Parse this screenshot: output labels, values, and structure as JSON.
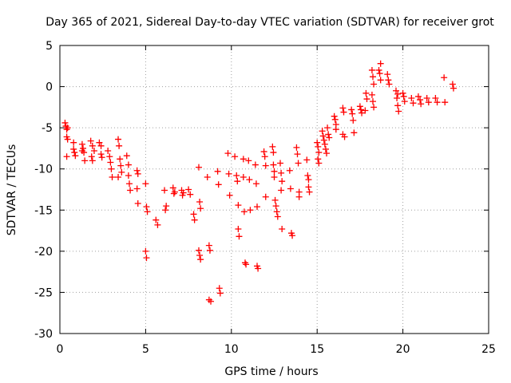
{
  "chart_data": {
    "type": "scatter",
    "title": "Day 365 of 2021, Sidereal Day-to-day VTEC variation (SDTVAR) for receiver grot",
    "xlabel": "GPS time / hours",
    "ylabel": "SDTVAR / TECUs",
    "xlim": [
      0,
      25
    ],
    "ylim": [
      -30,
      5
    ],
    "xticks": [
      0,
      5,
      10,
      15,
      20,
      25
    ],
    "yticks": [
      -30,
      -25,
      -20,
      -15,
      -10,
      -5,
      0,
      5
    ],
    "grid": true,
    "marker": "+",
    "color": "#ff0000",
    "series": [
      {
        "name": "SDTVAR",
        "points": [
          [
            0.3,
            -4.4
          ],
          [
            0.35,
            -4.8
          ],
          [
            0.4,
            -5.2
          ],
          [
            0.45,
            -5.0
          ],
          [
            0.4,
            -6.1
          ],
          [
            0.45,
            -6.4
          ],
          [
            0.4,
            -8.5
          ],
          [
            0.8,
            -6.8
          ],
          [
            0.85,
            -8.0
          ],
          [
            0.9,
            -8.4
          ],
          [
            0.8,
            -7.6
          ],
          [
            1.3,
            -7.0
          ],
          [
            1.35,
            -7.5
          ],
          [
            1.4,
            -8.0
          ],
          [
            1.45,
            -9.0
          ],
          [
            1.3,
            -7.8
          ],
          [
            1.8,
            -6.6
          ],
          [
            1.9,
            -7.2
          ],
          [
            2.0,
            -7.8
          ],
          [
            1.85,
            -8.5
          ],
          [
            1.9,
            -9.0
          ],
          [
            2.3,
            -6.8
          ],
          [
            2.4,
            -7.2
          ],
          [
            2.4,
            -8.2
          ],
          [
            2.45,
            -8.6
          ],
          [
            2.8,
            -7.8
          ],
          [
            2.9,
            -8.5
          ],
          [
            2.95,
            -9.2
          ],
          [
            3.0,
            -10.0
          ],
          [
            3.05,
            -11.0
          ],
          [
            3.4,
            -6.4
          ],
          [
            3.45,
            -7.2
          ],
          [
            3.5,
            -8.8
          ],
          [
            3.55,
            -9.6
          ],
          [
            3.6,
            -10.4
          ],
          [
            3.4,
            -11.0
          ],
          [
            3.9,
            -8.4
          ],
          [
            4.0,
            -9.5
          ],
          [
            4.0,
            -10.8
          ],
          [
            4.05,
            -11.8
          ],
          [
            4.1,
            -12.6
          ],
          [
            4.5,
            -10.2
          ],
          [
            4.55,
            -10.6
          ],
          [
            4.5,
            -12.4
          ],
          [
            4.55,
            -14.2
          ],
          [
            5.0,
            -11.8
          ],
          [
            5.05,
            -14.6
          ],
          [
            5.1,
            -15.2
          ],
          [
            5.0,
            -20.0
          ],
          [
            5.05,
            -20.8
          ],
          [
            5.6,
            -16.2
          ],
          [
            5.7,
            -16.8
          ],
          [
            6.1,
            -12.6
          ],
          [
            6.2,
            -14.5
          ],
          [
            6.15,
            -15.0
          ],
          [
            6.6,
            -12.3
          ],
          [
            6.65,
            -13.0
          ],
          [
            6.7,
            -12.8
          ],
          [
            7.1,
            -12.6
          ],
          [
            7.15,
            -13.2
          ],
          [
            7.2,
            -12.9
          ],
          [
            7.5,
            -12.5
          ],
          [
            7.6,
            -13.1
          ],
          [
            7.8,
            -15.5
          ],
          [
            7.85,
            -16.2
          ],
          [
            8.1,
            -9.8
          ],
          [
            8.15,
            -14.0
          ],
          [
            8.2,
            -14.8
          ],
          [
            8.1,
            -19.9
          ],
          [
            8.15,
            -20.5
          ],
          [
            8.2,
            -21.0
          ],
          [
            8.6,
            -11.0
          ],
          [
            8.7,
            -19.3
          ],
          [
            8.75,
            -19.9
          ],
          [
            8.7,
            -25.9
          ],
          [
            8.8,
            -26.1
          ],
          [
            9.2,
            -10.3
          ],
          [
            9.25,
            -11.9
          ],
          [
            9.3,
            -24.5
          ],
          [
            9.35,
            -25.1
          ],
          [
            9.8,
            -8.1
          ],
          [
            9.85,
            -10.6
          ],
          [
            9.9,
            -13.2
          ],
          [
            10.2,
            -8.5
          ],
          [
            10.3,
            -10.8
          ],
          [
            10.35,
            -11.5
          ],
          [
            10.4,
            -14.4
          ],
          [
            10.4,
            -17.3
          ],
          [
            10.45,
            -18.2
          ],
          [
            10.7,
            -11.0
          ],
          [
            10.75,
            -15.2
          ],
          [
            10.8,
            -21.4
          ],
          [
            10.85,
            -21.6
          ],
          [
            10.7,
            -8.8
          ],
          [
            11.0,
            -9.0
          ],
          [
            11.05,
            -11.3
          ],
          [
            11.1,
            -15.0
          ],
          [
            11.4,
            -9.5
          ],
          [
            11.45,
            -11.8
          ],
          [
            11.5,
            -14.6
          ],
          [
            11.5,
            -21.8
          ],
          [
            11.55,
            -22.1
          ],
          [
            11.9,
            -7.9
          ],
          [
            11.95,
            -8.5
          ],
          [
            12.0,
            -9.6
          ],
          [
            12.0,
            -13.4
          ],
          [
            12.4,
            -7.3
          ],
          [
            12.45,
            -8.0
          ],
          [
            12.45,
            -9.5
          ],
          [
            12.5,
            -10.3
          ],
          [
            12.5,
            -11.0
          ],
          [
            12.55,
            -13.8
          ],
          [
            12.6,
            -14.5
          ],
          [
            12.65,
            -15.2
          ],
          [
            12.7,
            -15.8
          ],
          [
            12.85,
            -9.3
          ],
          [
            12.9,
            -10.5
          ],
          [
            12.95,
            -11.5
          ],
          [
            12.9,
            -12.6
          ],
          [
            12.95,
            -17.3
          ],
          [
            13.4,
            -10.2
          ],
          [
            13.45,
            -12.4
          ],
          [
            13.5,
            -17.8
          ],
          [
            13.55,
            -18.1
          ],
          [
            13.8,
            -7.4
          ],
          [
            13.85,
            -8.2
          ],
          [
            13.9,
            -9.3
          ],
          [
            13.95,
            -12.8
          ],
          [
            13.95,
            -13.4
          ],
          [
            14.4,
            -8.9
          ],
          [
            14.45,
            -10.8
          ],
          [
            14.5,
            -11.3
          ],
          [
            14.5,
            -12.2
          ],
          [
            14.55,
            -12.8
          ],
          [
            15.0,
            -6.8
          ],
          [
            15.05,
            -7.3
          ],
          [
            15.1,
            -8.0
          ],
          [
            15.05,
            -8.8
          ],
          [
            15.1,
            -9.3
          ],
          [
            15.3,
            -5.4
          ],
          [
            15.35,
            -6.0
          ],
          [
            15.4,
            -6.5
          ],
          [
            15.45,
            -7.0
          ],
          [
            15.5,
            -7.6
          ],
          [
            15.55,
            -8.1
          ],
          [
            15.6,
            -5.0
          ],
          [
            15.65,
            -5.8
          ],
          [
            15.7,
            -6.2
          ],
          [
            16.0,
            -3.6
          ],
          [
            16.05,
            -4.0
          ],
          [
            16.1,
            -4.6
          ],
          [
            16.1,
            -5.2
          ],
          [
            16.5,
            -2.6
          ],
          [
            16.55,
            -3.1
          ],
          [
            16.5,
            -5.8
          ],
          [
            16.6,
            -6.1
          ],
          [
            17.0,
            -2.8
          ],
          [
            17.05,
            -3.3
          ],
          [
            17.1,
            -4.1
          ],
          [
            17.15,
            -5.6
          ],
          [
            17.5,
            -2.4
          ],
          [
            17.55,
            -2.8
          ],
          [
            17.6,
            -3.2
          ],
          [
            17.8,
            -2.9
          ],
          [
            17.9,
            -1.5
          ],
          [
            17.85,
            -0.8
          ],
          [
            18.2,
            2.0
          ],
          [
            18.25,
            1.2
          ],
          [
            18.3,
            0.3
          ],
          [
            18.2,
            -1.0
          ],
          [
            18.25,
            -1.8
          ],
          [
            18.3,
            -2.5
          ],
          [
            18.6,
            2.0
          ],
          [
            18.7,
            2.8
          ],
          [
            18.65,
            1.6
          ],
          [
            18.7,
            0.8
          ],
          [
            19.1,
            1.5
          ],
          [
            19.15,
            0.8
          ],
          [
            19.2,
            0.3
          ],
          [
            19.6,
            -0.5
          ],
          [
            19.7,
            -0.9
          ],
          [
            19.65,
            -1.4
          ],
          [
            19.7,
            -2.3
          ],
          [
            19.75,
            -3.0
          ],
          [
            20.0,
            -0.8
          ],
          [
            20.05,
            -1.2
          ],
          [
            20.1,
            -1.8
          ],
          [
            20.5,
            -1.4
          ],
          [
            20.6,
            -2.0
          ],
          [
            20.9,
            -1.2
          ],
          [
            21.0,
            -1.6
          ],
          [
            21.05,
            -2.1
          ],
          [
            21.4,
            -1.4
          ],
          [
            21.5,
            -1.9
          ],
          [
            21.9,
            -1.4
          ],
          [
            22.0,
            -1.9
          ],
          [
            22.4,
            1.1
          ],
          [
            22.45,
            -1.9
          ],
          [
            22.9,
            0.3
          ],
          [
            22.95,
            -0.2
          ]
        ]
      }
    ]
  }
}
